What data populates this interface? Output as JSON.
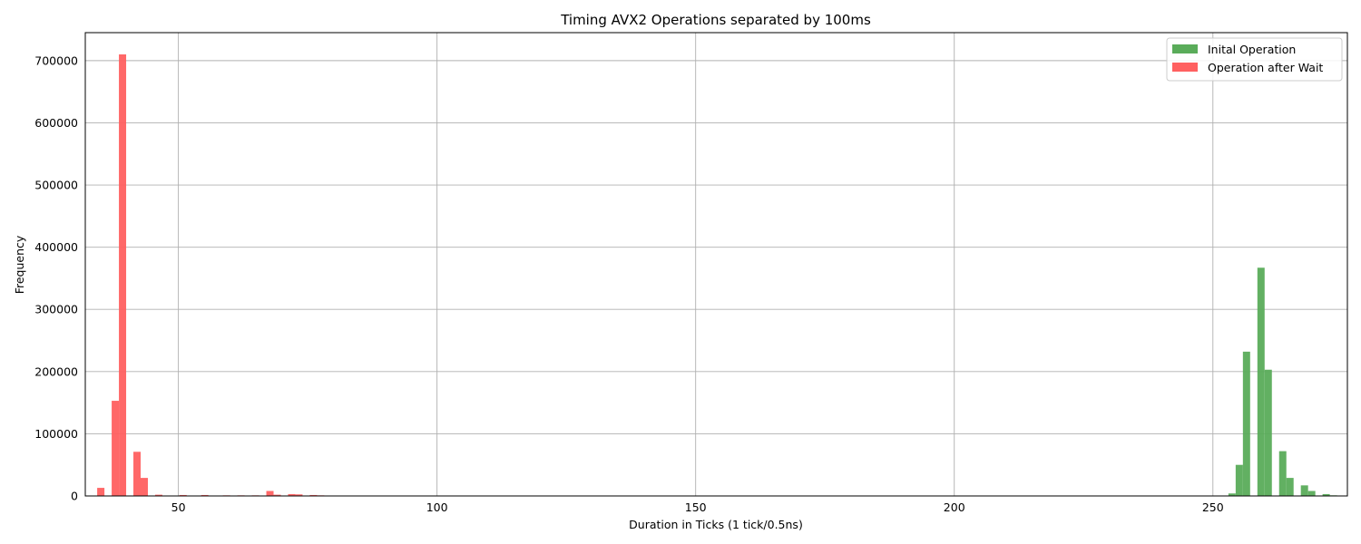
{
  "chart_data": {
    "type": "bar",
    "title": "Timing AVX2 Operations separated by 100ms",
    "xlabel": "Duration in Ticks (1 tick/0.5ns)",
    "ylabel": "Frequency",
    "xlim": [
      32,
      276
    ],
    "ylim": [
      0,
      745000
    ],
    "x_ticks": [
      50,
      100,
      150,
      200,
      250
    ],
    "y_ticks": [
      0,
      100000,
      200000,
      300000,
      400000,
      500000,
      600000,
      700000
    ],
    "grid": true,
    "legend_position": "top-right",
    "bin_width": 1.4,
    "series": [
      {
        "name": "Inital Operation",
        "color": "#5aac5a",
        "bins": [
          {
            "x": 253.0,
            "value": 4000
          },
          {
            "x": 254.4,
            "value": 50000
          },
          {
            "x": 255.8,
            "value": 232000
          },
          {
            "x": 258.6,
            "value": 367000
          },
          {
            "x": 260.0,
            "value": 203000
          },
          {
            "x": 262.8,
            "value": 72000
          },
          {
            "x": 264.2,
            "value": 29000
          },
          {
            "x": 267.0,
            "value": 17000
          },
          {
            "x": 268.4,
            "value": 8000
          },
          {
            "x": 271.2,
            "value": 3000
          },
          {
            "x": 272.6,
            "value": 1000
          }
        ]
      },
      {
        "name": "Operation after Wait",
        "color": "#ff6060",
        "bins": [
          {
            "x": 34.3,
            "value": 13000
          },
          {
            "x": 37.1,
            "value": 153000
          },
          {
            "x": 38.5,
            "value": 710000
          },
          {
            "x": 41.3,
            "value": 71000
          },
          {
            "x": 42.7,
            "value": 29000
          },
          {
            "x": 45.5,
            "value": 2000
          },
          {
            "x": 50.2,
            "value": 1500
          },
          {
            "x": 54.4,
            "value": 1500
          },
          {
            "x": 58.6,
            "value": 1000
          },
          {
            "x": 61.4,
            "value": 1000
          },
          {
            "x": 64.2,
            "value": 1000
          },
          {
            "x": 67.0,
            "value": 8000
          },
          {
            "x": 68.4,
            "value": 2000
          },
          {
            "x": 71.2,
            "value": 3000
          },
          {
            "x": 72.6,
            "value": 2500
          },
          {
            "x": 75.4,
            "value": 1500
          },
          {
            "x": 76.8,
            "value": 1000
          },
          {
            "x": 79.6,
            "value": 500
          },
          {
            "x": 81.0,
            "value": 500
          }
        ]
      }
    ]
  }
}
